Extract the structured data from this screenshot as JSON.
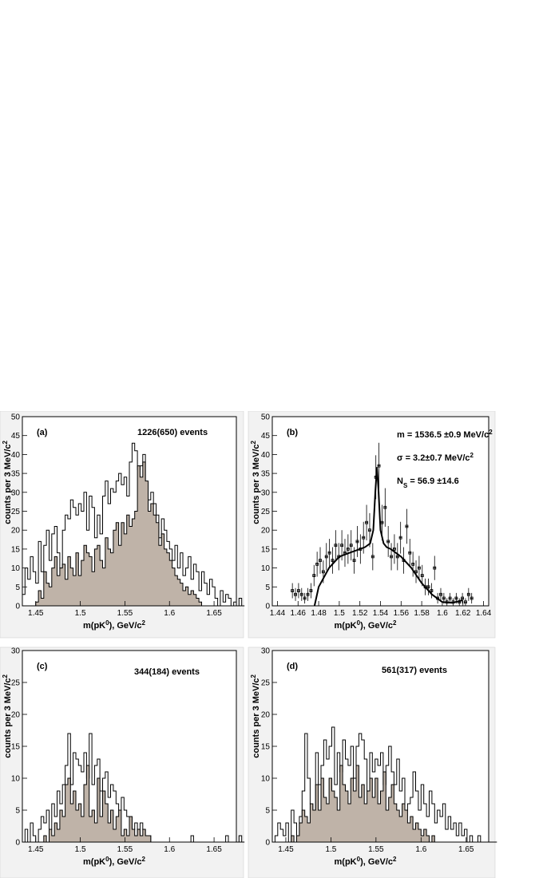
{
  "colors": {
    "page": "#ffffff",
    "pad": "#f2f2f2",
    "fill": "#bfb3a8",
    "line": "#000000"
  },
  "chart_data": [
    {
      "panel": "a",
      "type": "histogram",
      "label": "(a)",
      "note": "1226(650) events",
      "xlabel": "m(pK",
      "xlabel_sup": "0",
      "xlabel_tail": "), GeV/c",
      "xlabel_tail_sup": "2",
      "ylabel": "counts per 3 MeV/c",
      "ylabel_sup": "2",
      "xlim": [
        1.435,
        1.675
      ],
      "ylim": [
        0,
        50
      ],
      "xticks": [
        1.45,
        1.5,
        1.55,
        1.6,
        1.65
      ],
      "xtick_labels": [
        "1.45",
        "1.5",
        "1.55",
        "1.6",
        "1.65"
      ],
      "yticks": [
        0,
        5,
        10,
        15,
        20,
        25,
        30,
        35,
        40,
        45,
        50
      ],
      "ytick_labels": [
        "0",
        "5",
        "10",
        "15",
        "20",
        "25",
        "30",
        "35",
        "40",
        "45",
        "50"
      ],
      "bin_start": 1.435,
      "bin_width": 0.003,
      "series": [
        {
          "role": "outline",
          "values": [
            3,
            10,
            7,
            13,
            9,
            6,
            17,
            9,
            16,
            20,
            12,
            19,
            21,
            14,
            10,
            20,
            24,
            23,
            28,
            26,
            24,
            27,
            25,
            30,
            20,
            29,
            26,
            18,
            24,
            19,
            29,
            33,
            27,
            31,
            30,
            33,
            35,
            32,
            34,
            29,
            38,
            43,
            41,
            36,
            37,
            40,
            32,
            28,
            30,
            27,
            24,
            18,
            23,
            20,
            17,
            15,
            12,
            16,
            10,
            14,
            8,
            10,
            13,
            7,
            11,
            9,
            4,
            9,
            6,
            3,
            7,
            5,
            2,
            0,
            4,
            1,
            3,
            2,
            0,
            1,
            0,
            2,
            0
          ]
        },
        {
          "role": "filled",
          "values": [
            0,
            0,
            0,
            0,
            0,
            1,
            4,
            2,
            9,
            6,
            5,
            10,
            13,
            8,
            10,
            11,
            7,
            13,
            10,
            8,
            14,
            8,
            12,
            16,
            14,
            13,
            9,
            15,
            16,
            12,
            10,
            18,
            15,
            14,
            20,
            22,
            16,
            22,
            19,
            24,
            21,
            23,
            25,
            37,
            34,
            38,
            33,
            25,
            27,
            24,
            22,
            16,
            19,
            15,
            14,
            12,
            10,
            8,
            7,
            6,
            4,
            5,
            3,
            4,
            3,
            2,
            1,
            0,
            0,
            0,
            0,
            0,
            0,
            0,
            0,
            0,
            0,
            0,
            0,
            0,
            0,
            0,
            0
          ]
        }
      ]
    },
    {
      "panel": "b",
      "type": "scatter",
      "label": "(b)",
      "notes": [
        "m = 1536.5 ±0.9 MeV/c",
        "σ = 3.2±0.7 MeV/c",
        "N",
        "S",
        " = 56.9 ±14.6"
      ],
      "note_sup": "2",
      "xlabel": "m(pK",
      "xlabel_sup": "0",
      "xlabel_tail": "), GeV/c",
      "xlabel_tail_sup": "2",
      "ylabel": "counts per 3 MeV/c",
      "ylabel_sup": "2",
      "xlim": [
        1.435,
        1.645
      ],
      "ylim": [
        0,
        50
      ],
      "xticks": [
        1.44,
        1.46,
        1.48,
        1.5,
        1.52,
        1.54,
        1.56,
        1.58,
        1.6,
        1.62,
        1.64
      ],
      "xtick_labels": [
        "1.44",
        "1.46",
        "1.48",
        "1.5",
        "1.52",
        "1.54",
        "1.56",
        "1.58",
        "1.6",
        "1.62",
        "1.64"
      ],
      "yticks": [
        0,
        5,
        10,
        15,
        20,
        25,
        30,
        35,
        40,
        45,
        50
      ],
      "ytick_labels": [
        "0",
        "5",
        "10",
        "15",
        "20",
        "25",
        "30",
        "35",
        "40",
        "45",
        "50"
      ],
      "points": {
        "x": [
          1.4545,
          1.4575,
          1.4605,
          1.4635,
          1.4665,
          1.4695,
          1.4725,
          1.4755,
          1.4785,
          1.4815,
          1.4845,
          1.4875,
          1.4905,
          1.4935,
          1.4965,
          1.4995,
          1.5025,
          1.5055,
          1.5085,
          1.5115,
          1.5145,
          1.5175,
          1.5205,
          1.5235,
          1.5265,
          1.5295,
          1.5325,
          1.5355,
          1.5385,
          1.5415,
          1.5445,
          1.5475,
          1.5505,
          1.5535,
          1.5565,
          1.5595,
          1.5625,
          1.5655,
          1.5685,
          1.5715,
          1.5745,
          1.5775,
          1.5805,
          1.5835,
          1.5865,
          1.5895,
          1.5925,
          1.5955,
          1.5985,
          1.6015,
          1.6045,
          1.6075,
          1.6105,
          1.6135,
          1.6165,
          1.6195,
          1.6225,
          1.6255,
          1.6285
        ],
        "y": [
          4,
          3,
          4,
          3,
          2,
          3,
          4,
          8,
          11,
          12,
          9,
          13,
          14,
          12,
          16,
          13,
          16,
          14,
          15,
          16,
          12,
          17,
          15,
          18,
          22,
          20,
          13,
          34,
          37,
          22,
          26,
          17,
          13,
          15,
          13,
          18,
          12,
          21,
          14,
          11,
          9,
          10,
          8,
          5,
          5,
          4,
          10,
          2,
          3,
          2,
          1,
          2,
          1,
          2,
          1,
          2,
          1,
          3,
          2
        ],
        "err": [
          2,
          1.7,
          2,
          1.7,
          1.4,
          1.7,
          2,
          2.8,
          3.3,
          3.5,
          3,
          3.6,
          3.7,
          3.5,
          4,
          3.6,
          4,
          3.7,
          3.9,
          4,
          3.5,
          4.1,
          3.9,
          4.2,
          4.7,
          4.5,
          3.6,
          5.8,
          6.1,
          4.7,
          5.1,
          4.1,
          3.6,
          3.9,
          3.6,
          4.2,
          3.5,
          4.6,
          3.7,
          3.3,
          3,
          3.2,
          2.8,
          2.2,
          2.2,
          2,
          3.2,
          1.4,
          1.7,
          1.4,
          1,
          1.4,
          1,
          1.4,
          1,
          1.4,
          1,
          1.7,
          1.4
        ]
      },
      "fit": {
        "x": [
          1.476,
          1.48,
          1.49,
          1.5,
          1.51,
          1.52,
          1.525,
          1.53,
          1.533,
          1.535,
          1.5365,
          1.538,
          1.54,
          1.543,
          1.546,
          1.55,
          1.56,
          1.57,
          1.58,
          1.59,
          1.6,
          1.61,
          1.62
        ],
        "y": [
          0,
          5,
          10,
          13,
          14,
          15,
          15.5,
          16.5,
          20,
          30,
          36.5,
          31,
          20,
          16.5,
          15.5,
          15,
          13,
          10,
          6,
          3,
          1,
          0.8,
          1.5
        ]
      }
    },
    {
      "panel": "c",
      "type": "histogram",
      "label": "(c)",
      "note": "344(184) events",
      "xlabel": "m(pK",
      "xlabel_sup": "0",
      "xlabel_tail": "), GeV/c",
      "xlabel_tail_sup": "2",
      "ylabel": "counts per 3 MeV/c",
      "ylabel_sup": "2",
      "xlim": [
        1.435,
        1.675
      ],
      "ylim": [
        0,
        30
      ],
      "xticks": [
        1.45,
        1.5,
        1.55,
        1.6,
        1.65
      ],
      "xtick_labels": [
        "1.45",
        "1.5",
        "1.55",
        "1.6",
        "1.65"
      ],
      "yticks": [
        0,
        5,
        10,
        15,
        20,
        25,
        30
      ],
      "ytick_labels": [
        "0",
        "5",
        "10",
        "15",
        "20",
        "25",
        "30"
      ],
      "bin_start": 1.435,
      "bin_width": 0.003,
      "series": [
        {
          "role": "outline",
          "values": [
            0,
            2,
            0,
            3,
            1,
            0,
            2,
            4,
            3,
            5,
            2,
            6,
            4,
            8,
            6,
            9,
            12,
            17,
            9,
            14,
            13,
            12,
            11,
            14,
            10,
            17,
            9,
            12,
            13,
            8,
            10,
            11,
            7,
            9,
            8,
            6,
            5,
            7,
            5,
            4,
            4,
            2,
            3,
            1,
            3,
            2,
            1,
            1,
            0,
            0,
            0,
            0,
            0,
            0,
            0,
            0,
            0,
            0,
            0,
            0,
            0,
            0,
            0,
            1,
            0,
            0,
            0,
            0,
            0,
            0,
            0,
            0,
            0,
            0,
            0,
            0,
            1,
            0,
            0,
            0,
            0,
            1,
            0
          ]
        },
        {
          "role": "filled",
          "values": [
            0,
            0,
            0,
            0,
            0,
            0,
            0,
            0,
            1,
            0,
            2,
            1,
            3,
            2,
            5,
            4,
            9,
            10,
            6,
            8,
            5,
            6,
            4,
            9,
            12,
            4,
            5,
            3,
            10,
            4,
            8,
            6,
            3,
            5,
            2,
            4,
            5,
            1,
            2,
            1,
            4,
            2,
            1,
            2,
            1,
            2,
            1,
            1,
            0,
            0,
            0,
            0,
            0,
            0,
            0,
            0,
            0,
            0,
            0,
            0,
            0,
            0,
            0,
            0,
            0,
            0,
            0,
            0,
            0,
            0,
            0,
            0,
            0,
            0,
            0,
            0,
            0,
            0,
            0,
            0,
            0,
            0,
            0
          ]
        }
      ]
    },
    {
      "panel": "d",
      "type": "histogram",
      "label": "(d)",
      "note": "561(317) events",
      "xlabel": "m(pK",
      "xlabel_sup": "0",
      "xlabel_tail": "), GeV/c",
      "xlabel_tail_sup": "2",
      "ylabel": "counts per 3 MeV/c",
      "ylabel_sup": "2",
      "xlim": [
        1.435,
        1.675
      ],
      "ylim": [
        0,
        30
      ],
      "xticks": [
        1.45,
        1.5,
        1.55,
        1.6,
        1.65
      ],
      "xtick_labels": [
        "1.45",
        "1.5",
        "1.55",
        "1.6",
        "1.65"
      ],
      "yticks": [
        0,
        5,
        10,
        15,
        20,
        25,
        30
      ],
      "ytick_labels": [
        "0",
        "5",
        "10",
        "15",
        "20",
        "25",
        "30"
      ],
      "bin_start": 1.435,
      "bin_width": 0.003,
      "series": [
        {
          "role": "outline",
          "values": [
            0,
            1,
            3,
            2,
            1,
            3,
            0,
            5,
            3,
            1,
            4,
            8,
            17,
            10,
            6,
            3,
            14,
            9,
            12,
            16,
            13,
            15,
            18,
            9,
            14,
            11,
            16,
            13,
            12,
            15,
            10,
            15,
            17,
            16,
            13,
            8,
            14,
            11,
            13,
            12,
            14,
            9,
            12,
            15,
            11,
            9,
            13,
            8,
            10,
            5,
            6,
            7,
            11,
            8,
            5,
            9,
            6,
            4,
            8,
            6,
            3,
            5,
            4,
            6,
            2,
            4,
            2,
            3,
            1,
            3,
            1,
            2,
            0,
            1,
            0,
            0,
            1,
            0,
            0,
            0,
            0,
            0,
            0
          ]
        },
        {
          "role": "filled",
          "values": [
            0,
            0,
            0,
            0,
            0,
            0,
            0,
            1,
            0,
            1,
            3,
            5,
            4,
            3,
            6,
            5,
            9,
            5,
            10,
            7,
            6,
            10,
            8,
            7,
            5,
            12,
            9,
            8,
            6,
            10,
            8,
            12,
            7,
            9,
            6,
            8,
            10,
            7,
            10,
            6,
            8,
            11,
            5,
            7,
            9,
            6,
            5,
            4,
            6,
            5,
            3,
            4,
            2,
            3,
            2,
            1,
            2,
            1,
            0,
            1,
            0,
            0,
            0,
            0,
            0,
            0,
            0,
            0,
            0,
            0,
            0,
            0,
            0,
            0,
            0,
            0,
            0,
            0,
            0,
            0,
            0,
            0,
            0
          ]
        }
      ]
    }
  ]
}
